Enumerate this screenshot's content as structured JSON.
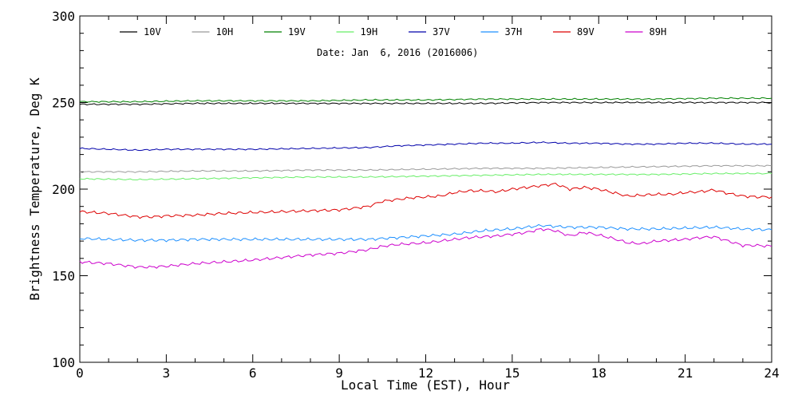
{
  "chart_data": {
    "type": "line",
    "title": "",
    "annotation": "Date: Jan  6, 2016 (2016006)",
    "xlabel": "Local Time (EST), Hour",
    "ylabel": "Brightness Temperature, Deg K",
    "xlim": [
      0,
      24
    ],
    "ylim": [
      100,
      300
    ],
    "xticks": [
      0,
      3,
      6,
      9,
      12,
      15,
      18,
      21,
      24
    ],
    "yticks": [
      100,
      150,
      200,
      250,
      300
    ],
    "legend_position": "top",
    "grid": false,
    "series": [
      {
        "name": "10V",
        "color": "#000000",
        "x": [
          0,
          2,
          4,
          6,
          8,
          10,
          12,
          14,
          16,
          18,
          20,
          22,
          24
        ],
        "y": [
          249,
          249,
          249.5,
          249.5,
          249.5,
          249.5,
          249.5,
          249.5,
          250,
          250,
          250,
          250,
          250
        ]
      },
      {
        "name": "10H",
        "color": "#999999",
        "x": [
          0,
          2,
          4,
          6,
          8,
          10,
          12,
          14,
          16,
          18,
          20,
          22,
          24
        ],
        "y": [
          210,
          210,
          210.5,
          210.5,
          211,
          211,
          211.5,
          212,
          212,
          212.5,
          213,
          213.5,
          213.5
        ]
      },
      {
        "name": "19V",
        "color": "#008000",
        "x": [
          0,
          2,
          4,
          6,
          8,
          10,
          12,
          14,
          16,
          18,
          20,
          22,
          24
        ],
        "y": [
          250.5,
          250.5,
          251,
          251,
          251,
          251.5,
          251.5,
          252,
          252,
          252,
          252,
          252.5,
          252.5
        ]
      },
      {
        "name": "19H",
        "color": "#66ee66",
        "x": [
          0,
          2,
          4,
          6,
          8,
          10,
          12,
          14,
          16,
          18,
          20,
          22,
          24
        ],
        "y": [
          206,
          205.5,
          206,
          206.5,
          207,
          207,
          207.5,
          208,
          208.5,
          208.5,
          208.5,
          209,
          209
        ]
      },
      {
        "name": "37V",
        "color": "#0000aa",
        "x": [
          0,
          1,
          2,
          3,
          4,
          6,
          8,
          10,
          11,
          12,
          13,
          14,
          15,
          16,
          17,
          18,
          19,
          20,
          21,
          22,
          23,
          24
        ],
        "y": [
          223.5,
          223,
          222.5,
          223,
          223,
          223,
          223.5,
          224,
          225,
          225.5,
          226,
          226.5,
          226.5,
          227,
          226.5,
          226.5,
          226,
          226,
          226.5,
          226.5,
          226,
          226
        ]
      },
      {
        "name": "37H",
        "color": "#1e90ff",
        "x": [
          0,
          1,
          2,
          3,
          4,
          6,
          8,
          10,
          11,
          12,
          13,
          14,
          15,
          15.5,
          16,
          16.5,
          17,
          18,
          19,
          20,
          21,
          22,
          23,
          24
        ],
        "y": [
          171.5,
          171,
          170.5,
          170.5,
          171,
          171,
          171,
          171,
          172,
          173,
          174,
          176,
          177,
          178,
          179,
          178.5,
          178,
          178,
          177,
          177,
          177.5,
          178,
          177,
          176.5
        ]
      },
      {
        "name": "89V",
        "color": "#dd0000",
        "x": [
          0,
          1,
          2,
          2.5,
          3,
          4,
          5,
          6,
          7,
          8,
          9,
          10,
          10.5,
          11,
          11.5,
          12,
          12.5,
          13,
          13.5,
          14,
          14.5,
          15,
          15.5,
          16,
          16.5,
          17,
          17.5,
          18,
          18.5,
          19,
          19.5,
          20,
          20.5,
          21,
          21.5,
          22,
          22.5,
          23,
          23.5,
          24
        ],
        "y": [
          187,
          186,
          184,
          184,
          184.5,
          185,
          186,
          186.5,
          187,
          187.5,
          188,
          190,
          193,
          194,
          195,
          195.5,
          196,
          198,
          199,
          199,
          198.5,
          200,
          201,
          202,
          203,
          200,
          201,
          200,
          198,
          196,
          196.5,
          197,
          197,
          198,
          198.5,
          199.5,
          197.5,
          196,
          195.5,
          195.5
        ]
      },
      {
        "name": "89H",
        "color": "#cc00cc",
        "x": [
          0,
          1,
          2,
          2.5,
          3,
          4,
          5,
          6,
          7,
          8,
          9,
          10,
          10.5,
          11,
          11.5,
          12,
          12.5,
          13,
          13.5,
          14,
          14.5,
          15,
          15.5,
          16,
          16.5,
          17,
          17.5,
          18,
          18.5,
          19,
          19.5,
          20,
          20.5,
          21,
          21.5,
          22,
          22.5,
          23,
          23.5,
          24
        ],
        "y": [
          158,
          157,
          155,
          155,
          155.5,
          157,
          158,
          159,
          160.5,
          162,
          163,
          165,
          167,
          168,
          168.5,
          169,
          170,
          171,
          172,
          172.5,
          173,
          174,
          175,
          177,
          176,
          173,
          175,
          173.5,
          171.5,
          169,
          168.5,
          170,
          170.5,
          171,
          172,
          172.5,
          170,
          167.5,
          167.5,
          167
        ]
      }
    ]
  }
}
